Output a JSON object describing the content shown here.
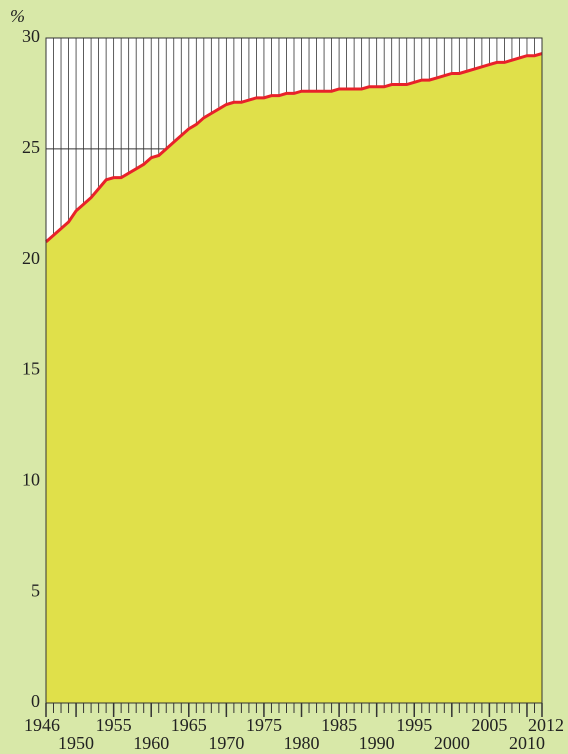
{
  "chart_data": {
    "type": "area",
    "y_label": "%",
    "x": [
      1946,
      1947,
      1948,
      1949,
      1950,
      1951,
      1952,
      1953,
      1954,
      1955,
      1956,
      1957,
      1958,
      1959,
      1960,
      1961,
      1962,
      1963,
      1964,
      1965,
      1966,
      1967,
      1968,
      1969,
      1970,
      1971,
      1972,
      1973,
      1974,
      1975,
      1976,
      1977,
      1978,
      1979,
      1980,
      1981,
      1982,
      1983,
      1984,
      1985,
      1986,
      1987,
      1988,
      1989,
      1990,
      1991,
      1992,
      1993,
      1994,
      1995,
      1996,
      1997,
      1998,
      1999,
      2000,
      2001,
      2002,
      2003,
      2004,
      2005,
      2006,
      2007,
      2008,
      2009,
      2010,
      2011,
      2012
    ],
    "values": [
      20.8,
      21.1,
      21.4,
      21.7,
      22.2,
      22.5,
      22.8,
      23.2,
      23.6,
      23.7,
      23.7,
      23.9,
      24.1,
      24.3,
      24.6,
      24.7,
      25.0,
      25.3,
      25.6,
      25.9,
      26.1,
      26.4,
      26.6,
      26.8,
      27.0,
      27.1,
      27.1,
      27.2,
      27.3,
      27.3,
      27.4,
      27.4,
      27.5,
      27.5,
      27.6,
      27.6,
      27.6,
      27.6,
      27.6,
      27.7,
      27.7,
      27.7,
      27.7,
      27.8,
      27.8,
      27.8,
      27.9,
      27.9,
      27.9,
      28.0,
      28.1,
      28.1,
      28.2,
      28.3,
      28.4,
      28.4,
      28.5,
      28.6,
      28.7,
      28.8,
      28.9,
      28.9,
      29.0,
      29.1,
      29.2,
      29.2,
      29.3
    ],
    "color": "#e0e04a",
    "line_color": "#e8222a",
    "xlim": [
      1946,
      2012
    ],
    "xticks": [
      1946,
      1950,
      1955,
      1960,
      1965,
      1970,
      1975,
      1980,
      1985,
      1990,
      1995,
      2000,
      2005,
      2010,
      2012
    ],
    "ylim": [
      0,
      30
    ],
    "yticks": [
      0,
      5,
      10,
      15,
      20,
      25,
      30
    ],
    "grid": true
  }
}
